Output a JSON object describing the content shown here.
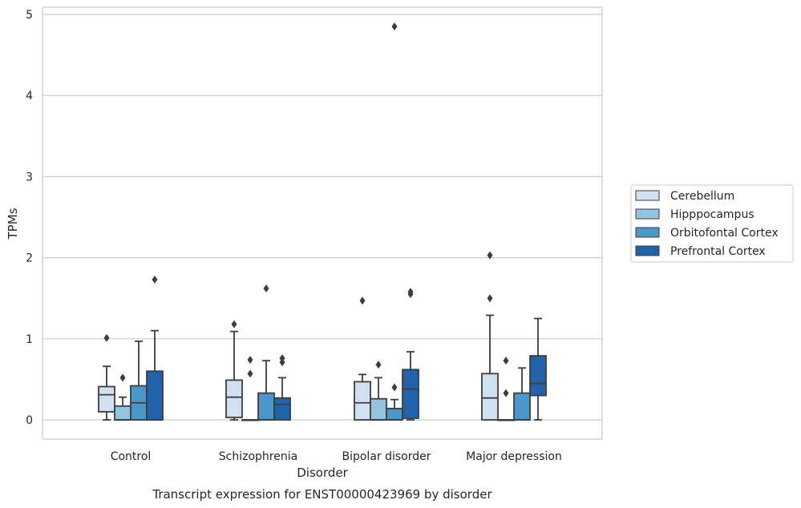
{
  "chart_data": {
    "type": "box",
    "title": "",
    "caption": "Transcript expression for ENST00000423969 by disorder",
    "xlabel": "Disorder",
    "ylabel": "TPMs",
    "ylim": [
      -0.23,
      5.1
    ],
    "yticks": [
      "0",
      "1",
      "2",
      "3",
      "4",
      "5"
    ],
    "ytick_values": [
      0,
      1,
      2,
      3,
      4,
      5
    ],
    "grid": "horizontal",
    "legend_position": "right",
    "categories": [
      "Control",
      "Schizophrenia",
      "Bipolar disorder",
      "Major depression"
    ],
    "series": [
      {
        "name": "Cerebellum",
        "color": "#d0e1f2",
        "boxes": [
          {
            "q1": 0.1,
            "median": 0.31,
            "q3": 0.41,
            "whislo": 0.0,
            "whishi": 0.66,
            "fliers": [
              1.01
            ]
          },
          {
            "q1": 0.03,
            "median": 0.28,
            "q3": 0.49,
            "whislo": 0.0,
            "whishi": 1.09,
            "fliers": [
              1.18
            ]
          },
          {
            "q1": 0.0,
            "median": 0.21,
            "q3": 0.47,
            "whislo": 0.0,
            "whishi": 0.56,
            "fliers": [
              1.47
            ]
          },
          {
            "q1": 0.0,
            "median": 0.27,
            "q3": 0.57,
            "whislo": 0.0,
            "whishi": 1.29,
            "fliers": [
              1.5,
              2.03
            ]
          }
        ]
      },
      {
        "name": "Hipppocampus",
        "color": "#94c4df",
        "boxes": [
          {
            "q1": 0.0,
            "median": 0.0,
            "q3": 0.17,
            "whislo": 0.0,
            "whishi": 0.28,
            "fliers": [
              0.52
            ]
          },
          {
            "q1": 0.0,
            "median": 0.0,
            "q3": 0.0,
            "whislo": 0.0,
            "whishi": 0.0,
            "fliers": [
              0.57,
              0.74
            ]
          },
          {
            "q1": 0.0,
            "median": 0.0,
            "q3": 0.26,
            "whislo": 0.0,
            "whishi": 0.52,
            "fliers": [
              0.68
            ]
          },
          {
            "q1": 0.0,
            "median": 0.0,
            "q3": 0.0,
            "whislo": 0.0,
            "whishi": 0.0,
            "fliers": [
              0.33,
              0.73
            ]
          }
        ]
      },
      {
        "name": "Orbitofontal Cortex",
        "color": "#4a98c9",
        "boxes": [
          {
            "q1": 0.0,
            "median": 0.21,
            "q3": 0.42,
            "whislo": 0.0,
            "whishi": 0.97,
            "fliers": []
          },
          {
            "q1": 0.0,
            "median": 0.0,
            "q3": 0.33,
            "whislo": 0.0,
            "whishi": 0.73,
            "fliers": [
              1.62
            ]
          },
          {
            "q1": 0.0,
            "median": 0.0,
            "q3": 0.14,
            "whislo": 0.0,
            "whishi": 0.25,
            "fliers": [
              0.4,
              4.85
            ]
          },
          {
            "q1": 0.0,
            "median": 0.0,
            "q3": 0.33,
            "whislo": 0.0,
            "whishi": 0.64,
            "fliers": []
          }
        ]
      },
      {
        "name": "Prefrontal Cortex",
        "color": "#2163aa",
        "boxes": [
          {
            "q1": 0.0,
            "median": 0.0,
            "q3": 0.6,
            "whislo": 0.0,
            "whishi": 1.1,
            "fliers": [
              1.73
            ]
          },
          {
            "q1": 0.0,
            "median": 0.19,
            "q3": 0.27,
            "whislo": 0.0,
            "whishi": 0.52,
            "fliers": [
              0.71,
              0.76
            ]
          },
          {
            "q1": 0.02,
            "median": 0.38,
            "q3": 0.62,
            "whislo": 0.0,
            "whishi": 0.84,
            "fliers": [
              1.55,
              1.58
            ]
          },
          {
            "q1": 0.3,
            "median": 0.45,
            "q3": 0.79,
            "whislo": 0.0,
            "whishi": 1.25,
            "fliers": []
          }
        ]
      }
    ]
  }
}
